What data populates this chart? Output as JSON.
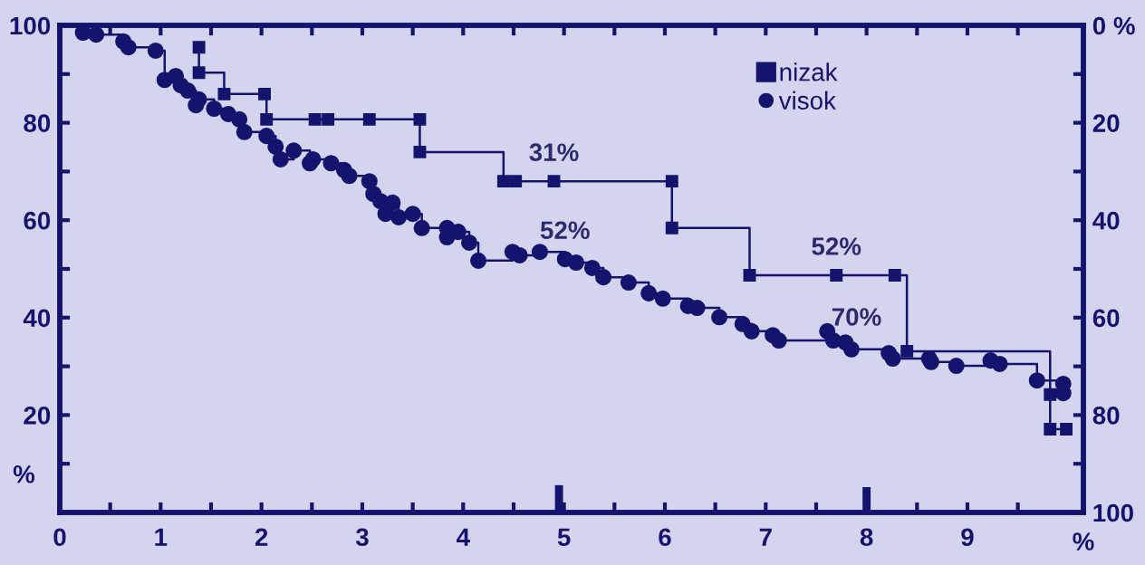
{
  "chart_data": {
    "type": "step",
    "xlabel": "%",
    "ylabel": "%",
    "xlim": [
      0,
      10.15
    ],
    "ylim": [
      0,
      100
    ],
    "y2lim": [
      100,
      0
    ],
    "xticks": [
      0,
      {
        "value": 0.5,
        "label": null
      },
      1,
      {
        "value": 1.5,
        "label": null
      },
      2,
      {
        "value": 2.5,
        "label": null
      },
      3,
      {
        "value": 3.5,
        "label": null
      },
      4,
      {
        "value": 4.5,
        "label": null
      },
      5,
      {
        "value": 5.5,
        "label": null
      },
      6,
      {
        "value": 6.5,
        "label": null
      },
      7,
      {
        "value": 7.5,
        "label": null
      },
      8,
      {
        "value": 8.5,
        "label": null
      },
      9,
      {
        "value": 9.5,
        "label": null
      }
    ],
    "yticks": [
      {
        "value": 10,
        "label": null
      },
      20,
      {
        "value": 30,
        "label": null
      },
      40,
      {
        "value": 50,
        "label": null
      },
      60,
      {
        "value": 70,
        "label": null
      },
      80,
      {
        "value": 90,
        "label": null
      },
      100
    ],
    "y2ticks": [
      {
        "value": 0,
        "label": "0 %"
      },
      {
        "value": 10,
        "label": null
      },
      20,
      {
        "value": 30,
        "label": null
      },
      40,
      {
        "value": 50,
        "label": null
      },
      60,
      {
        "value": 70,
        "label": null
      },
      80,
      {
        "value": 90,
        "label": null
      },
      100
    ],
    "grid": false,
    "legend": "top",
    "series": [
      {
        "name": "nizak",
        "marker": "square",
        "color": "#14146e",
        "x": [
          1.38,
          1.38,
          1.63,
          2.03,
          2.05,
          2.53,
          2.66,
          3.07,
          3.57,
          3.57,
          4.4,
          4.52,
          4.9,
          6.07,
          6.07,
          6.84,
          7.7,
          8.28,
          8.4,
          9.82,
          9.82,
          9.98
        ],
        "values": [
          95.5,
          90.3,
          85.9,
          85.9,
          80.7,
          80.7,
          80.7,
          80.7,
          80.7,
          74.0,
          68.0,
          68.0,
          68.0,
          68.0,
          58.4,
          48.7,
          48.7,
          48.7,
          33.1,
          24.2,
          17.1,
          17.1
        ]
      },
      {
        "name": "visok",
        "marker": "circle",
        "color": "#14146e",
        "x": [
          0.23,
          0.36,
          0.63,
          0.68,
          0.95,
          1.04,
          1.15,
          1.2,
          1.27,
          1.35,
          1.38,
          1.53,
          1.67,
          1.78,
          1.83,
          2.05,
          2.14,
          2.19,
          2.32,
          2.48,
          2.51,
          2.69,
          2.82,
          2.87,
          3.07,
          3.11,
          3.18,
          3.23,
          3.3,
          3.36,
          3.5,
          3.59,
          3.84,
          3.84,
          3.95,
          4.06,
          4.15,
          4.49,
          4.56,
          4.76,
          5.01,
          5.12,
          5.28,
          5.39,
          5.64,
          5.84,
          5.98,
          6.23,
          6.32,
          6.54,
          6.77,
          6.86,
          7.07,
          7.13,
          7.61,
          7.67,
          7.79,
          7.85,
          8.22,
          8.26,
          8.62,
          8.64,
          8.89,
          9.23,
          9.32,
          9.69,
          9.95,
          9.95
        ],
        "values": [
          98.5,
          98.1,
          96.7,
          95.5,
          94.8,
          88.8,
          89.6,
          87.7,
          86.6,
          83.6,
          84.8,
          82.9,
          81.8,
          80.7,
          78.1,
          77.3,
          75.1,
          72.5,
          74.3,
          71.7,
          72.5,
          71.7,
          70.3,
          69.1,
          68.0,
          65.4,
          63.9,
          61.3,
          63.6,
          60.6,
          61.3,
          58.4,
          58.4,
          56.5,
          57.6,
          55.4,
          51.7,
          53.5,
          52.8,
          53.5,
          52.0,
          51.3,
          50.2,
          48.3,
          47.2,
          45.0,
          43.9,
          42.4,
          42.0,
          40.1,
          38.7,
          37.2,
          36.4,
          35.3,
          37.2,
          35.3,
          34.9,
          33.5,
          32.7,
          31.6,
          31.6,
          30.9,
          30.1,
          31.2,
          30.5,
          27.1,
          24.5,
          26.4
        ]
      },
      {
        "type": "bar",
        "color": "#14146e",
        "x": [
          4.95,
          8.0
        ],
        "values": [
          5.6,
          5.2
        ]
      }
    ],
    "annotations": [
      {
        "text": "31%",
        "x": 4.9,
        "y": 68.0
      },
      {
        "text": "52%",
        "x": 5.01,
        "y": 52.0
      },
      {
        "text": "52%",
        "x": 7.7,
        "y": 48.7
      },
      {
        "text": "70%",
        "x": 7.9,
        "y": 34.2
      }
    ]
  }
}
